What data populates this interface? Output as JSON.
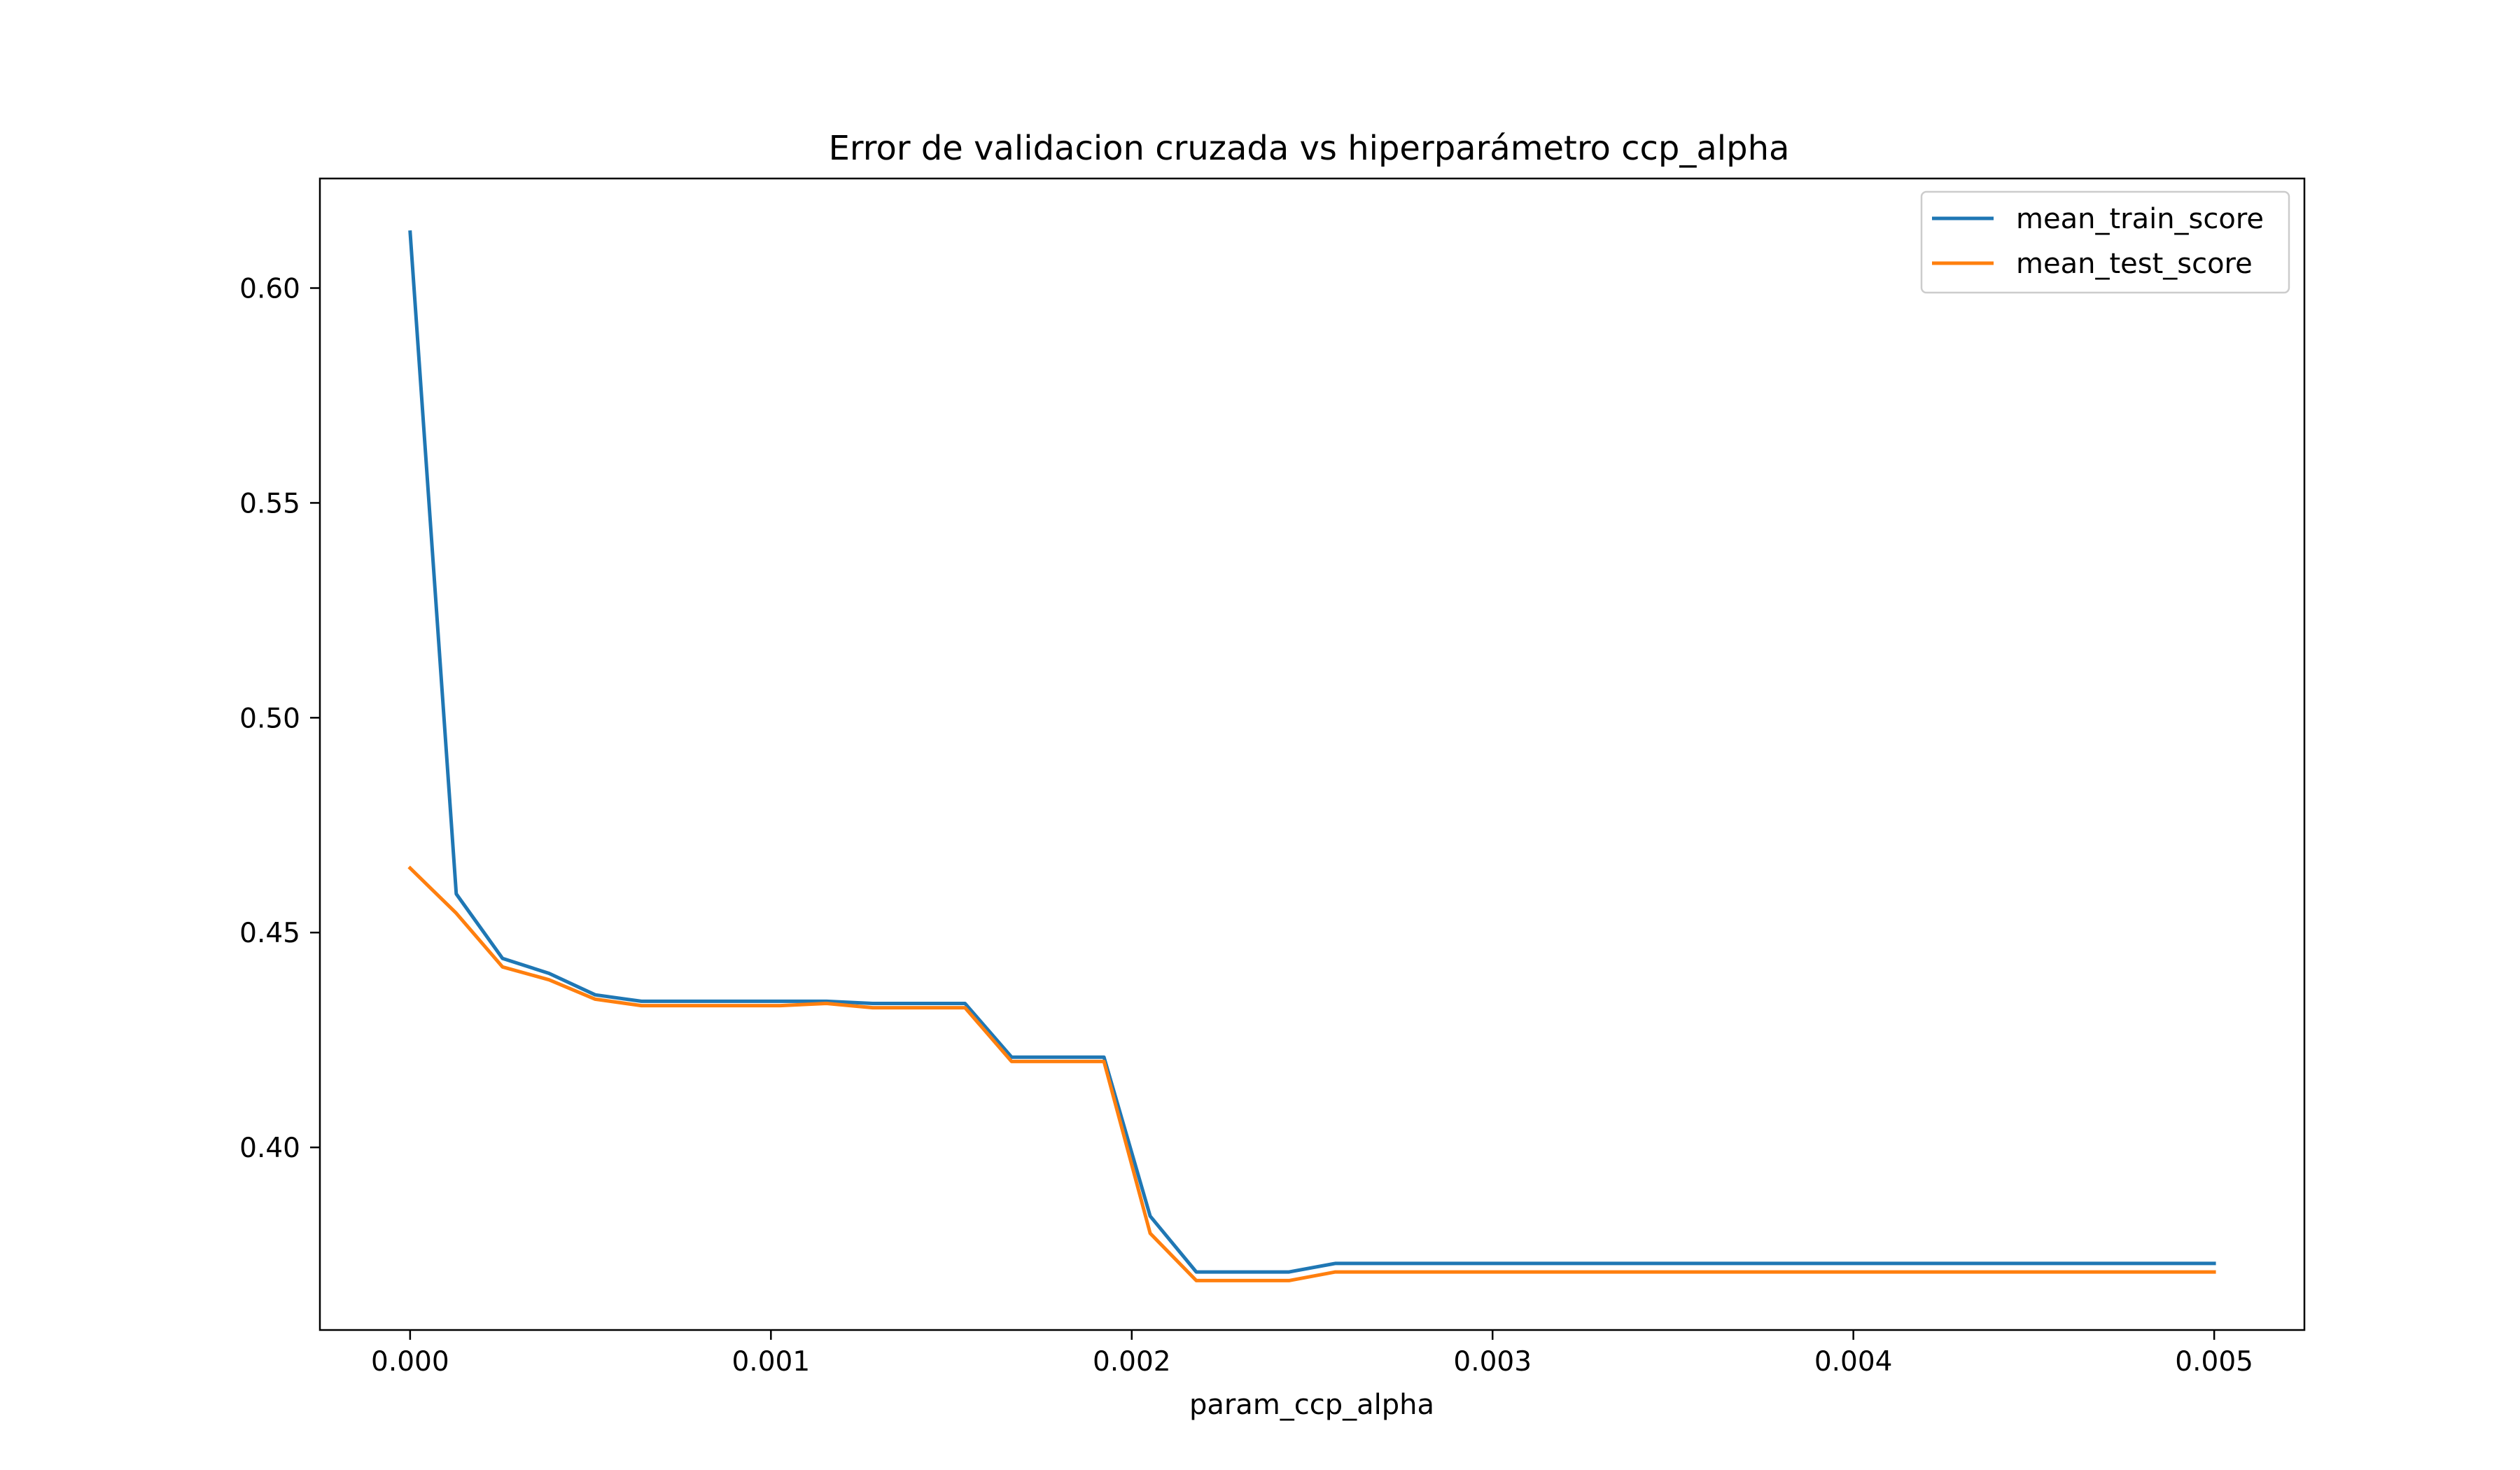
{
  "chart_data": {
    "type": "line",
    "title": "Error de validacion cruzada vs hiperparámetro ccp_alpha",
    "xlabel": "param_ccp_alpha",
    "ylabel": "",
    "xlim": [
      -0.00025,
      0.00525
    ],
    "ylim": [
      0.3575,
      0.6255
    ],
    "xticks": [
      0.0,
      0.001,
      0.002,
      0.003,
      0.004,
      0.005
    ],
    "xtick_labels": [
      "0.000",
      "0.001",
      "0.002",
      "0.003",
      "0.004",
      "0.005"
    ],
    "yticks": [
      0.4,
      0.45,
      0.5,
      0.55,
      0.6
    ],
    "ytick_labels": [
      "0.40",
      "0.45",
      "0.50",
      "0.55",
      "0.60"
    ],
    "grid": false,
    "legend_position": "upper right",
    "x": [
      0.0,
      0.000128,
      0.000256,
      0.000385,
      0.000513,
      0.000641,
      0.000769,
      0.000897,
      0.001026,
      0.001154,
      0.001282,
      0.00141,
      0.001538,
      0.001667,
      0.001795,
      0.001923,
      0.002051,
      0.002179,
      0.002308,
      0.002436,
      0.002564,
      0.005
    ],
    "series": [
      {
        "name": "mean_train_score",
        "color": "#1f77b4",
        "values": [
          0.613,
          0.459,
          0.444,
          0.4405,
          0.4355,
          0.434,
          0.434,
          0.434,
          0.434,
          0.434,
          0.4335,
          0.4335,
          0.4335,
          0.421,
          0.421,
          0.421,
          0.384,
          0.371,
          0.371,
          0.371,
          0.373,
          0.373
        ]
      },
      {
        "name": "mean_test_score",
        "color": "#ff7f0e",
        "values": [
          0.465,
          0.4545,
          0.442,
          0.439,
          0.4345,
          0.433,
          0.433,
          0.433,
          0.433,
          0.4335,
          0.4325,
          0.4325,
          0.4325,
          0.42,
          0.42,
          0.42,
          0.38,
          0.369,
          0.369,
          0.369,
          0.371,
          0.371
        ]
      }
    ]
  }
}
